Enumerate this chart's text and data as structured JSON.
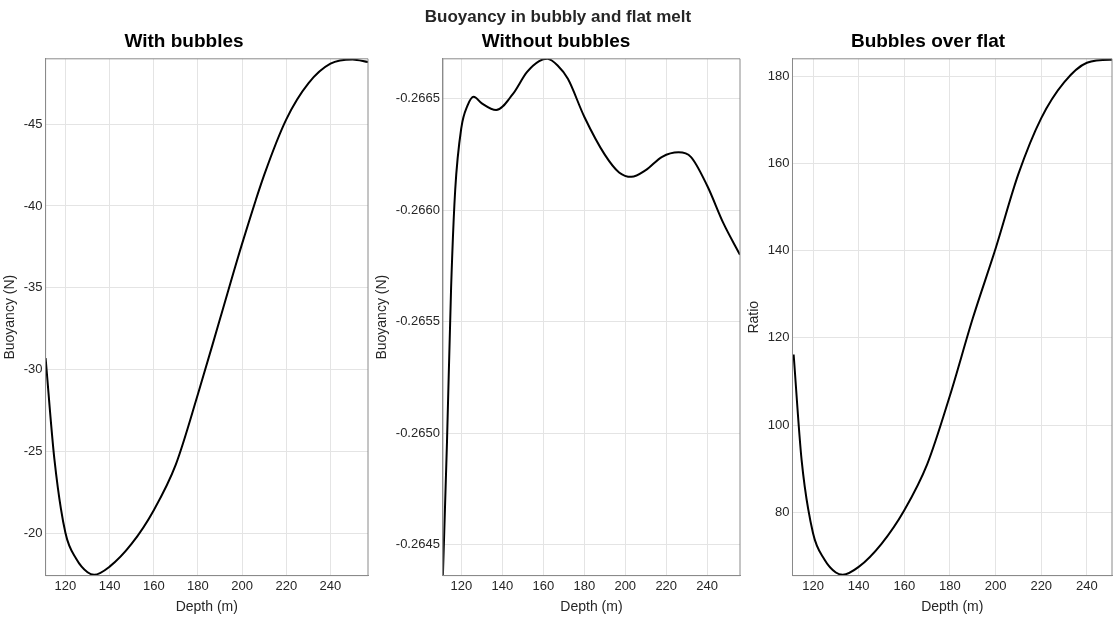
{
  "chart_data": [
    {
      "type": "line",
      "title": "With bubbles",
      "xlabel": "Depth (m)",
      "ylabel": "Buoyancy (N)",
      "annotations": [
        "Buoyancy in bubbly and flat melt"
      ],
      "x": [
        111,
        115,
        120,
        125,
        130,
        133,
        140,
        150,
        160,
        170,
        180,
        190,
        200,
        210,
        220,
        230,
        240,
        250,
        257
      ],
      "series": [
        {
          "color": "#000000",
          "values": [
            -30.7,
            -24.5,
            -20.0,
            -18.4,
            -17.6,
            -17.45,
            -17.95,
            -19.35,
            -21.4,
            -24.2,
            -28.5,
            -33.1,
            -37.7,
            -41.9,
            -45.3,
            -47.5,
            -48.7,
            -48.96,
            -48.8
          ]
        }
      ],
      "xlim": [
        111,
        257
      ],
      "ylim": [
        -17.4,
        -49
      ],
      "xticks": [
        120,
        140,
        160,
        180,
        200,
        220,
        240
      ],
      "yticks": [
        -45,
        -40,
        -35,
        -30,
        -25,
        -20
      ],
      "grid": true
    },
    {
      "type": "line",
      "title": "Without bubbles",
      "xlabel": "Depth (m)",
      "ylabel": "Buoyancy (N)",
      "x": [
        111,
        113,
        115,
        117,
        120,
        123,
        126,
        130,
        137,
        145,
        152,
        158,
        162,
        167,
        172,
        180,
        190,
        197,
        203,
        210,
        218,
        226,
        232,
        240,
        248,
        256
      ],
      "series": [
        {
          "color": "#000000",
          "values": [
            -0.26436,
            -0.26496,
            -0.26565,
            -0.26609,
            -0.26637,
            -0.26647,
            -0.26651,
            -0.26648,
            -0.26645,
            -0.26652,
            -0.26662,
            -0.26667,
            -0.26668,
            -0.26665,
            -0.26659,
            -0.26642,
            -0.26625,
            -0.26617,
            -0.26615,
            -0.26618,
            -0.26624,
            -0.26626,
            -0.26624,
            -0.26611,
            -0.26594,
            -0.2658
          ]
        }
      ],
      "xlim": [
        111,
        256
      ],
      "ylim": [
        -0.26436,
        -0.26668
      ],
      "xticks": [
        120,
        140,
        160,
        180,
        200,
        220,
        240
      ],
      "yticks": [
        -0.2665,
        {
          "value": -0.266,
          "label": "-0.2660"
        },
        -0.2655,
        {
          "value": -0.265,
          "label": "-0.2650"
        },
        -0.2645
      ],
      "grid": true
    },
    {
      "type": "line",
      "title": "Bubbles over flat",
      "xlabel": "Depth (m)",
      "ylabel": "Ratio",
      "x": [
        111.5,
        115,
        120,
        125,
        130,
        133,
        140,
        150,
        160,
        170,
        180,
        190,
        200,
        210,
        220,
        230,
        240,
        250,
        251
      ],
      "series": [
        {
          "color": "#000000",
          "values": [
            116.2,
            92.0,
            75.2,
            69.2,
            66.2,
            65.7,
            67.5,
            72.8,
            80.5,
            91.0,
            106.8,
            124.5,
            140.5,
            157.6,
            170.4,
            178.6,
            183.1,
            183.8,
            183.8
          ]
        }
      ],
      "xlim": [
        111,
        251
      ],
      "ylim": [
        65.5,
        184.0
      ],
      "xticks": [
        120,
        140,
        160,
        180,
        200,
        220,
        240
      ],
      "yticks": [
        80,
        100,
        120,
        140,
        160,
        180
      ],
      "grid": true
    }
  ]
}
